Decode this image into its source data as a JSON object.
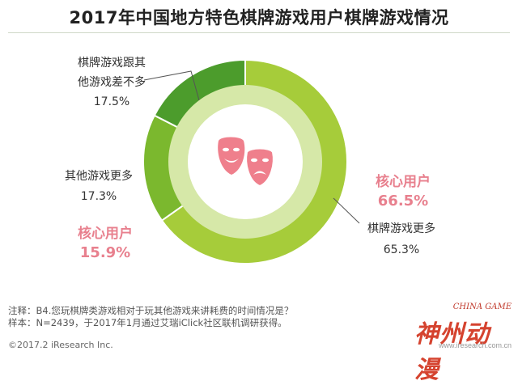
{
  "chart_data": {
    "type": "pie",
    "title": "2017年中国地方特色棋牌游戏用户棋牌游戏情况",
    "slices": [
      {
        "name": "棋牌游戏更多",
        "value": 65.3,
        "color": "#a6cc3a"
      },
      {
        "name": "其他游戏更多",
        "value": 17.3,
        "color": "#7bb82e"
      },
      {
        "name": "棋牌游戏跟其他游戏差不多",
        "value": 17.5,
        "color": "#4c9c2c"
      }
    ],
    "labels": {
      "more": {
        "line1": "棋牌游戏更多",
        "pct": "65.3%"
      },
      "other": {
        "line1": "其他游戏更多",
        "pct": "17.3%"
      },
      "same": {
        "line1": "棋牌游戏跟其",
        "line2": "他游戏差不多",
        "pct": "17.5%"
      }
    },
    "core_users_right": {
      "name": "核心用户",
      "value": "66.5%"
    },
    "core_users_left": {
      "name": "核心用户",
      "value": "15.9%"
    }
  },
  "colors": {
    "inner_ring": "#d6e8a8",
    "center": "#ffffff",
    "icon": "#ef7f8c"
  },
  "center_icon": "drama-masks-icon",
  "notes": {
    "line1": "注释：B4.您玩棋牌类游戏相对于玩其他游戏来讲耗费的时间情况是？",
    "line2": "样本：N=2439，于2017年1月通过艾瑞iClick社区联机调研获得。"
  },
  "copyright": "©2017.2 iResearch Inc.",
  "logo": {
    "en": "CHINA GAME",
    "cn": "神州动漫",
    "url": "www.iresearch.com.cn"
  }
}
